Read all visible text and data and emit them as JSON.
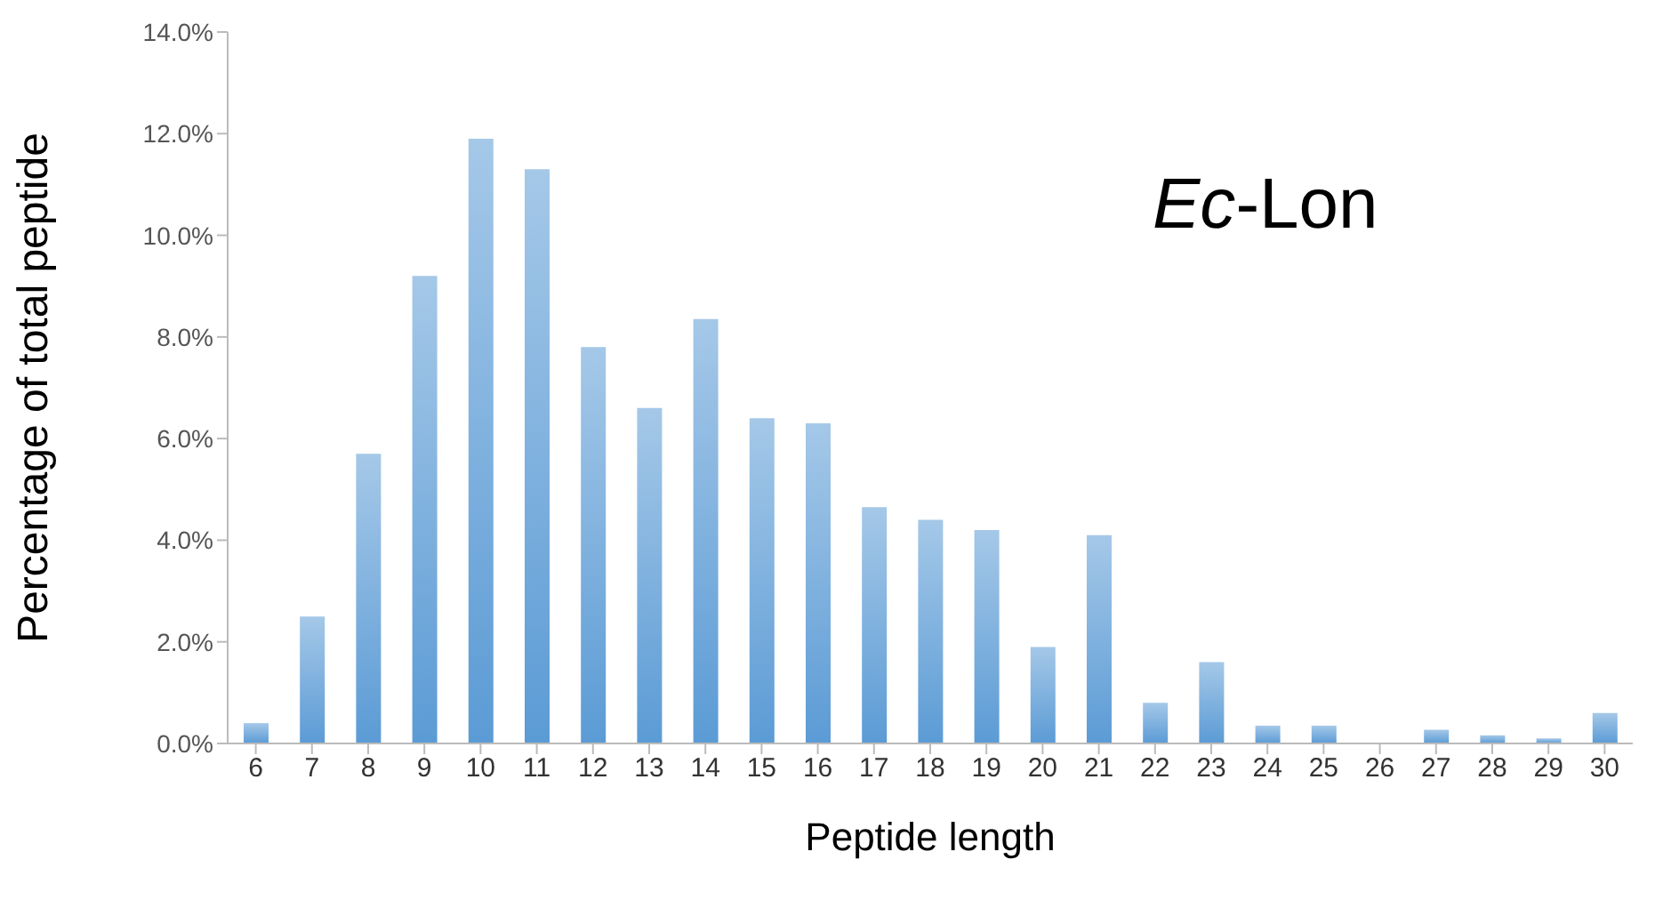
{
  "chart_data": {
    "type": "bar",
    "xlabel": "Peptide length",
    "ylabel": "Percentage of total peptide",
    "categories": [
      "6",
      "7",
      "8",
      "9",
      "10",
      "11",
      "12",
      "13",
      "14",
      "15",
      "16",
      "17",
      "18",
      "19",
      "20",
      "21",
      "22",
      "23",
      "24",
      "25",
      "26",
      "27",
      "28",
      "29",
      "30"
    ],
    "values": [
      0.4,
      2.5,
      5.7,
      9.2,
      11.9,
      11.3,
      7.8,
      6.6,
      8.35,
      6.4,
      6.3,
      4.65,
      4.4,
      4.2,
      1.9,
      4.1,
      0.8,
      1.6,
      0.35,
      0.35,
      0,
      0.27,
      0.16,
      0.1,
      0.6
    ],
    "color": "#5b9bd5",
    "ylim": [
      0,
      14
    ],
    "yticks": [
      {
        "value": 0,
        "label": "0.0%"
      },
      {
        "value": 2,
        "label": "2.0%"
      },
      {
        "value": 4,
        "label": "4.0%"
      },
      {
        "value": 6,
        "label": "6.0%"
      },
      {
        "value": 8,
        "label": "8.0%"
      },
      {
        "value": 10,
        "label": "10.0%"
      },
      {
        "value": 12,
        "label": "12.0%"
      },
      {
        "value": 14,
        "label": "14.0%"
      }
    ],
    "annotations": [
      "Ec-Lon"
    ],
    "grid": false,
    "legend": false
  }
}
